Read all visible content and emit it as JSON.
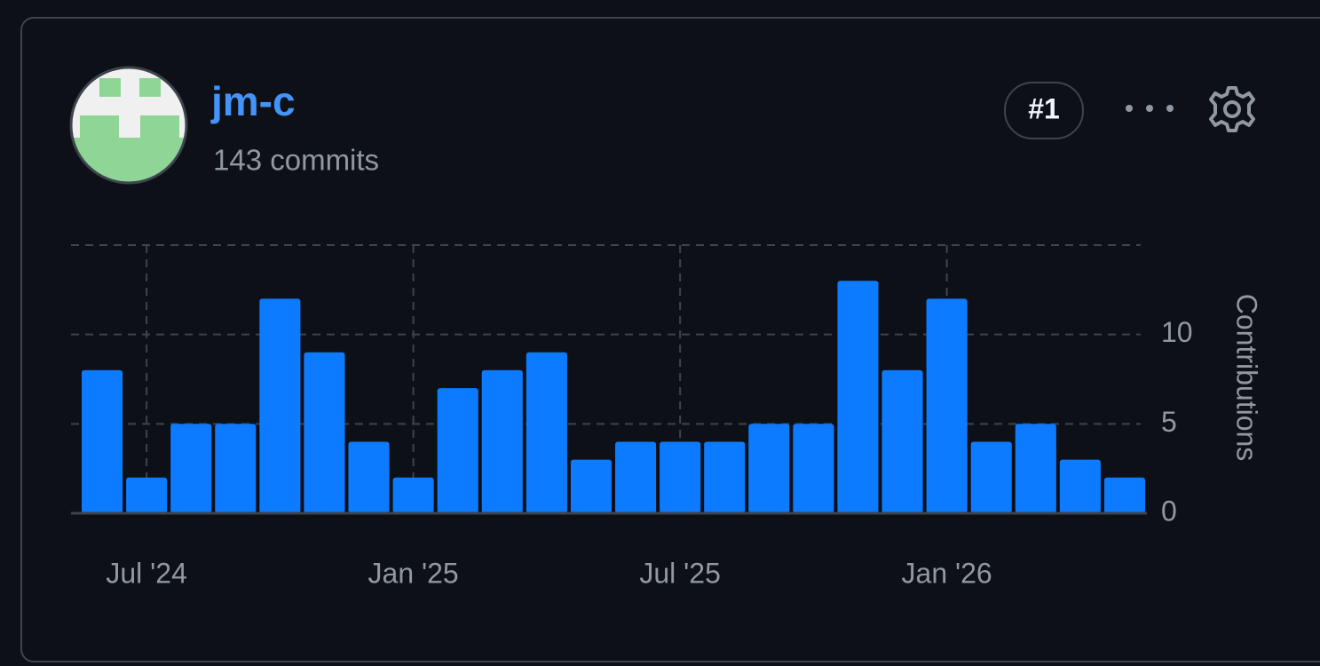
{
  "user": {
    "name": "jm-c",
    "commits": "143 commits",
    "rank": "#1"
  },
  "chart_data": {
    "type": "bar",
    "y_label": "Contributions",
    "categories": [
      null,
      "Jul '24",
      null,
      null,
      null,
      null,
      null,
      "Jan '25",
      null,
      null,
      null,
      null,
      null,
      "Jul '25",
      null,
      null,
      null,
      null,
      null,
      "Jan '26",
      null,
      null,
      null,
      null
    ],
    "values": [
      8,
      2,
      5,
      5,
      12,
      9,
      4,
      2,
      7,
      8,
      9,
      3,
      4,
      4,
      4,
      5,
      5,
      13,
      8,
      12,
      4,
      5,
      3,
      2
    ],
    "color": "#0d7bff",
    "ylim": [
      0,
      15
    ],
    "yticks": [
      0,
      5,
      10
    ],
    "grid": true
  }
}
